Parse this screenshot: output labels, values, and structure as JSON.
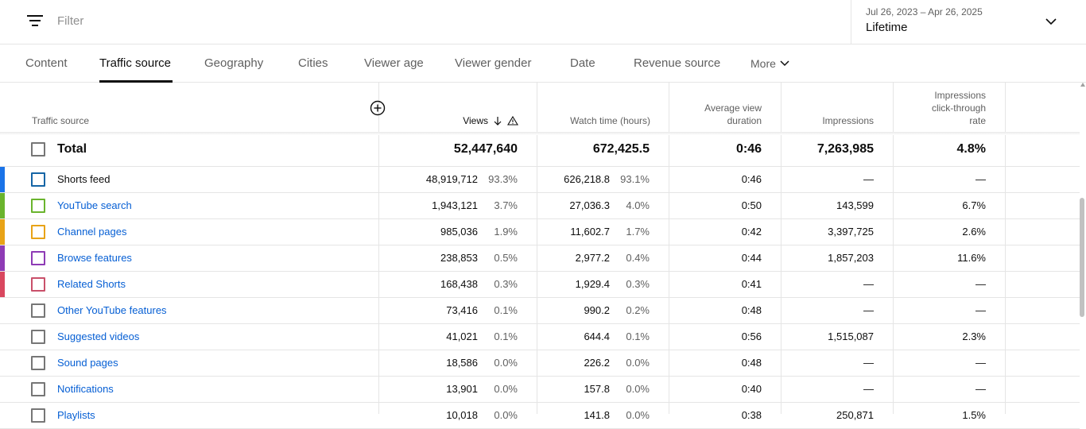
{
  "filter": {
    "placeholder": "Filter",
    "icon": "filter-icon"
  },
  "date": {
    "range": "Jul 26, 2023 – Apr 26, 2025",
    "label": "Lifetime",
    "icon": "chevron-down-icon"
  },
  "tabs": [
    {
      "label": "Content"
    },
    {
      "label": "Traffic source",
      "active": true
    },
    {
      "label": "Geography"
    },
    {
      "label": "Cities"
    },
    {
      "label": "Viewer age"
    },
    {
      "label": "Viewer gender"
    },
    {
      "label": "Date"
    },
    {
      "label": "Revenue source"
    },
    {
      "label": "More"
    }
  ],
  "table": {
    "headers": {
      "source": "Traffic source",
      "views": "Views",
      "watch_time": "Watch time (hours)",
      "avg_duration_line1": "Average view",
      "avg_duration_line2": "duration",
      "impressions": "Impressions",
      "ctr_line1": "Impressions",
      "ctr_line2": "click-through",
      "ctr_line3": "rate"
    },
    "total": {
      "label": "Total",
      "views": "52,447,640",
      "watch_time": "672,425.5",
      "avg_duration": "0:46",
      "impressions": "7,263,985",
      "ctr": "4.8%"
    },
    "rows": [
      {
        "name": "Shorts feed",
        "color": "#1a73e8",
        "cb_color": "#1565a6",
        "views": "48,919,712",
        "views_pct": "93.3%",
        "watch": "626,218.8",
        "watch_pct": "93.1%",
        "avg": "0:46",
        "impr": "—",
        "ctr": "—"
      },
      {
        "name": "YouTube search",
        "color": "#6ab42d",
        "cb_color": "#6ab42d",
        "views": "1,943,121",
        "views_pct": "3.7%",
        "watch": "27,036.3",
        "watch_pct": "4.0%",
        "avg": "0:50",
        "impr": "143,599",
        "ctr": "6.7%"
      },
      {
        "name": "Channel pages",
        "color": "#e8a317",
        "cb_color": "#e8a317",
        "views": "985,036",
        "views_pct": "1.9%",
        "watch": "11,602.7",
        "watch_pct": "1.7%",
        "avg": "0:42",
        "impr": "3,397,725",
        "ctr": "2.6%"
      },
      {
        "name": "Browse features",
        "color": "#8e3bb5",
        "cb_color": "#8e3bb5",
        "views": "238,853",
        "views_pct": "0.5%",
        "watch": "2,977.2",
        "watch_pct": "0.4%",
        "avg": "0:44",
        "impr": "1,857,203",
        "ctr": "11.6%"
      },
      {
        "name": "Related Shorts",
        "color": "#d9475f",
        "cb_color": "#c9506a",
        "views": "168,438",
        "views_pct": "0.3%",
        "watch": "1,929.4",
        "watch_pct": "0.3%",
        "avg": "0:41",
        "impr": "—",
        "ctr": "—"
      },
      {
        "name": "Other YouTube features",
        "color": "",
        "cb_color": "#767676",
        "views": "73,416",
        "views_pct": "0.1%",
        "watch": "990.2",
        "watch_pct": "0.2%",
        "avg": "0:48",
        "impr": "—",
        "ctr": "—"
      },
      {
        "name": "Suggested videos",
        "color": "",
        "cb_color": "#767676",
        "views": "41,021",
        "views_pct": "0.1%",
        "watch": "644.4",
        "watch_pct": "0.1%",
        "avg": "0:56",
        "impr": "1,515,087",
        "ctr": "2.3%"
      },
      {
        "name": "Sound pages",
        "color": "",
        "cb_color": "#767676",
        "views": "18,586",
        "views_pct": "0.0%",
        "watch": "226.2",
        "watch_pct": "0.0%",
        "avg": "0:48",
        "impr": "—",
        "ctr": "—"
      },
      {
        "name": "Notifications",
        "color": "",
        "cb_color": "#767676",
        "views": "13,901",
        "views_pct": "0.0%",
        "watch": "157.8",
        "watch_pct": "0.0%",
        "avg": "0:40",
        "impr": "—",
        "ctr": "—"
      },
      {
        "name": "Playlists",
        "color": "",
        "cb_color": "#767676",
        "views": "10,018",
        "views_pct": "0.0%",
        "watch": "141.8",
        "watch_pct": "0.0%",
        "avg": "0:38",
        "impr": "250,871",
        "ctr": "1.5%"
      }
    ]
  }
}
